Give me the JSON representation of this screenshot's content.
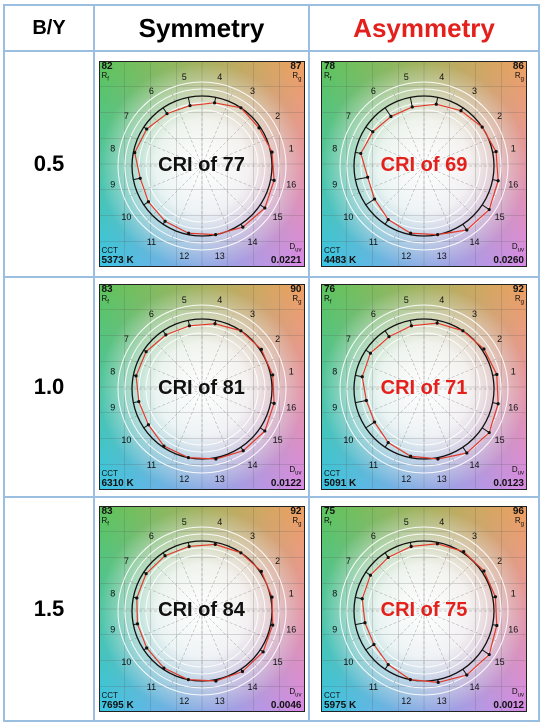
{
  "header": {
    "col0": "B/Y",
    "col1": "Symmetry",
    "col2": "Asymmetry"
  },
  "labels": {
    "rf": "R",
    "rf_sub": "f",
    "rg": "R",
    "rg_sub": "g",
    "cct": "CCT",
    "duv": "D",
    "duv_sub": "uv"
  },
  "hue_bins": [
    "1",
    "2",
    "3",
    "4",
    "5",
    "6",
    "7",
    "8",
    "9",
    "10",
    "11",
    "12",
    "13",
    "14",
    "15",
    "16"
  ],
  "colors": {
    "asymmetry_text": "#e3201b",
    "test_line": "#e23a2a",
    "ref_line": "#111111",
    "border": "#9bbfe0"
  },
  "rows": [
    {
      "ratio": "0.5",
      "symmetry": {
        "rf": "82",
        "rg": "87",
        "cct": "5373 K",
        "duv": "0.0221",
        "cri": "CRI of 77",
        "radii": [
          1.02,
          0.98,
          1.0,
          0.92,
          0.88,
          0.9,
          0.95,
          0.98,
          0.9,
          0.92,
          0.95,
          0.98,
          1.0,
          1.05,
          1.08,
          1.05
        ]
      },
      "asymmetry": {
        "rf": "78",
        "rg": "86",
        "cct": "4483 K",
        "duv": "0.0260",
        "cri": "CRI of 69",
        "radii": [
          1.05,
          1.0,
          0.95,
          0.9,
          0.86,
          0.85,
          0.88,
          0.92,
          0.82,
          0.85,
          0.92,
          0.98,
          1.0,
          1.1,
          1.12,
          1.08
        ]
      }
    },
    {
      "ratio": "1.0",
      "symmetry": {
        "rf": "83",
        "rg": "90",
        "cct": "6310 K",
        "duv": "0.0122",
        "cri": "CRI of 81",
        "radii": [
          1.03,
          1.02,
          1.0,
          0.95,
          0.92,
          0.93,
          0.96,
          0.96,
          0.92,
          0.92,
          0.98,
          1.0,
          1.02,
          1.06,
          1.08,
          1.05
        ]
      },
      "asymmetry": {
        "rf": "76",
        "rg": "92",
        "cct": "5091 K",
        "duv": "0.0123",
        "cri": "CRI of 71",
        "radii": [
          1.06,
          1.03,
          1.0,
          0.96,
          0.92,
          0.9,
          0.92,
          0.9,
          0.84,
          0.85,
          0.92,
          0.98,
          1.02,
          1.1,
          1.12,
          1.08
        ]
      }
    },
    {
      "ratio": "1.5",
      "symmetry": {
        "rf": "83",
        "rg": "92",
        "cct": "7695 K",
        "duv": "0.0046",
        "cri": "CRI of 84",
        "radii": [
          1.02,
          1.02,
          1.0,
          0.97,
          0.94,
          0.95,
          0.96,
          0.95,
          0.94,
          0.95,
          0.98,
          1.0,
          1.02,
          1.04,
          1.05,
          1.03
        ]
      },
      "asymmetry": {
        "rf": "75",
        "rg": "96",
        "cct": "5975 K",
        "duv": "0.0012",
        "cri": "CRI of 75",
        "radii": [
          1.04,
          1.03,
          1.02,
          0.98,
          0.94,
          0.92,
          0.92,
          0.9,
          0.86,
          0.86,
          0.92,
          1.0,
          1.04,
          1.1,
          1.12,
          1.06
        ]
      }
    }
  ]
}
